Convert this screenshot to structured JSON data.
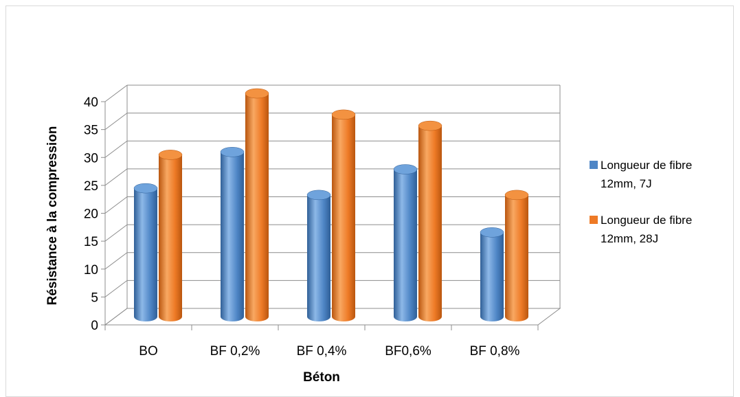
{
  "chart_data": {
    "type": "bar",
    "title": "",
    "xlabel": "Béton",
    "ylabel": "Résistance à la compression",
    "categories": [
      "BO",
      "BF 0,2%",
      "BF 0,4%",
      "BF0,6%",
      "BF 0,8%"
    ],
    "series": [
      {
        "name": "Longueur de fibre 12mm, 7J",
        "legend_lines": [
          "Longueur de fibre",
          "12mm, 7J"
        ],
        "values": [
          23,
          29.5,
          21.8,
          26.4,
          15.1
        ],
        "color": "#4F86C6"
      },
      {
        "name": "Longueur de fibre 12mm, 28J",
        "legend_lines": [
          "Longueur de fibre",
          "12mm, 28J"
        ],
        "values": [
          29,
          40,
          36.2,
          34.2,
          21.8
        ],
        "color": "#EE7A26"
      }
    ],
    "ylim": [
      0,
      40
    ],
    "yticks": [
      0,
      5,
      10,
      15,
      20,
      25,
      30,
      35,
      40
    ],
    "grid": true,
    "legend_position": "right",
    "style": "3d-cylinder"
  }
}
